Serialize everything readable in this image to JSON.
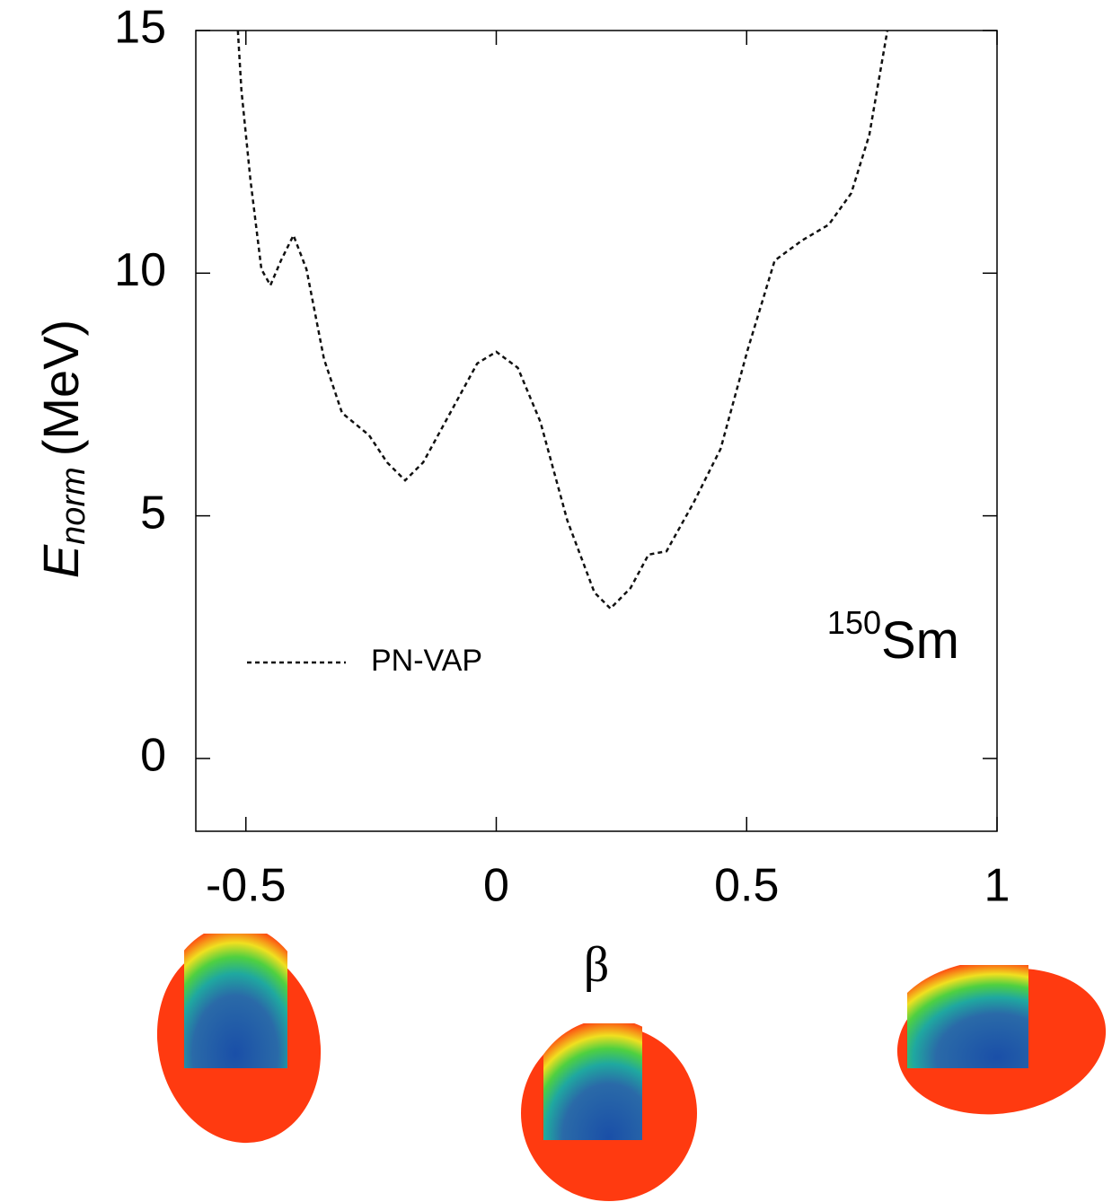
{
  "chart_data": {
    "type": "line",
    "ylabel": {
      "main": "E",
      "sub": "norm",
      "unit": "(MeV)"
    },
    "xlabel": "β",
    "annotation": {
      "sup": "150",
      "text": "Sm"
    },
    "x": [
      -0.516,
      -0.509,
      -0.491,
      -0.469,
      -0.451,
      -0.43,
      -0.405,
      -0.379,
      -0.344,
      -0.308,
      -0.254,
      -0.218,
      -0.182,
      -0.146,
      -0.092,
      -0.038,
      0,
      0.043,
      0.088,
      0.142,
      0.196,
      0.228,
      0.268,
      0.304,
      0.34,
      0.394,
      0.448,
      0.502,
      0.556,
      0.61,
      0.664,
      0.709,
      0.745,
      0.781
    ],
    "series": [
      {
        "name": "PN-VAP",
        "color": "#111111",
        "values": [
          15,
          13.78,
          11.93,
          10.08,
          9.75,
          10.26,
          10.78,
          10.08,
          8.23,
          7.12,
          6.66,
          6.1,
          5.73,
          6.1,
          7.12,
          8.14,
          8.38,
          8.05,
          6.94,
          4.9,
          3.42,
          3.09,
          3.51,
          4.2,
          4.27,
          5.27,
          6.38,
          8.42,
          10.26,
          10.67,
          11.0,
          11.65,
          12.85,
          15
        ]
      }
    ],
    "xlim": [
      -0.6,
      1
    ],
    "ylim": [
      -1.5,
      15
    ],
    "xticks": [
      -0.5,
      0,
      0.5,
      1
    ],
    "yticks": [
      0,
      5,
      10,
      15
    ],
    "legend": "lower left",
    "line_style": "dashed"
  }
}
